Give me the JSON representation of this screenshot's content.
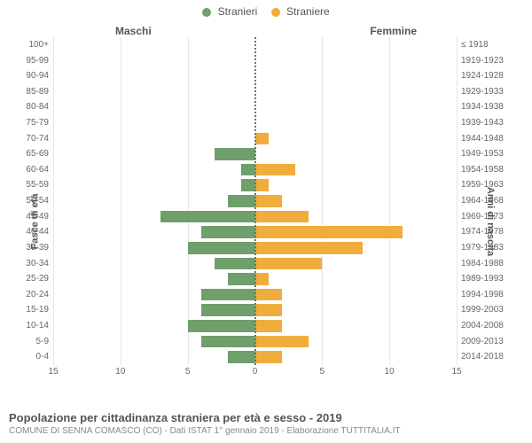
{
  "chart": {
    "type": "population-pyramid",
    "legend": {
      "male": {
        "label": "Stranieri",
        "color": "#6f9f6b"
      },
      "female": {
        "label": "Straniere",
        "color": "#f0ad3c"
      }
    },
    "side_titles": {
      "left": "Maschi",
      "right": "Femmine"
    },
    "y_axis_labels": {
      "left": "Fasce di età",
      "right": "Anni di nascita"
    },
    "x_axis": {
      "min": -15,
      "max": 15,
      "ticks": [
        -15,
        -10,
        -5,
        0,
        5,
        10,
        15
      ],
      "tick_labels": [
        "15",
        "10",
        "5",
        "0",
        "5",
        "10",
        "15"
      ]
    },
    "colors": {
      "background": "#ffffff",
      "text": "#555555",
      "text_muted": "#888888",
      "gridline": "#e6e6e6",
      "center_line": "#707070"
    },
    "typography": {
      "label_fontsize": 10,
      "legend_fontsize": 12,
      "side_title_fontsize": 12,
      "footer_title_fontsize": 13,
      "footer_sub_fontsize": 10
    },
    "rows": [
      {
        "age": "100+",
        "birth": "≤ 1918",
        "male": 0,
        "female": 0
      },
      {
        "age": "95-99",
        "birth": "1919-1923",
        "male": 0,
        "female": 0
      },
      {
        "age": "90-94",
        "birth": "1924-1928",
        "male": 0,
        "female": 0
      },
      {
        "age": "85-89",
        "birth": "1929-1933",
        "male": 0,
        "female": 0
      },
      {
        "age": "80-84",
        "birth": "1934-1938",
        "male": 0,
        "female": 0
      },
      {
        "age": "75-79",
        "birth": "1939-1943",
        "male": 0,
        "female": 0
      },
      {
        "age": "70-74",
        "birth": "1944-1948",
        "male": 0,
        "female": 1
      },
      {
        "age": "65-69",
        "birth": "1949-1953",
        "male": 3,
        "female": 0
      },
      {
        "age": "60-64",
        "birth": "1954-1958",
        "male": 1,
        "female": 3
      },
      {
        "age": "55-59",
        "birth": "1959-1963",
        "male": 1,
        "female": 1
      },
      {
        "age": "50-54",
        "birth": "1964-1968",
        "male": 2,
        "female": 2
      },
      {
        "age": "45-49",
        "birth": "1969-1973",
        "male": 7,
        "female": 4
      },
      {
        "age": "40-44",
        "birth": "1974-1978",
        "male": 4,
        "female": 11
      },
      {
        "age": "35-39",
        "birth": "1979-1983",
        "male": 5,
        "female": 8
      },
      {
        "age": "30-34",
        "birth": "1984-1988",
        "male": 3,
        "female": 5
      },
      {
        "age": "25-29",
        "birth": "1989-1993",
        "male": 2,
        "female": 1
      },
      {
        "age": "20-24",
        "birth": "1994-1998",
        "male": 4,
        "female": 2
      },
      {
        "age": "15-19",
        "birth": "1999-2003",
        "male": 4,
        "female": 2
      },
      {
        "age": "10-14",
        "birth": "2004-2008",
        "male": 5,
        "female": 2
      },
      {
        "age": "5-9",
        "birth": "2009-2013",
        "male": 4,
        "female": 4
      },
      {
        "age": "0-4",
        "birth": "2014-2018",
        "male": 2,
        "female": 2
      }
    ],
    "footer": {
      "title": "Popolazione per cittadinanza straniera per età e sesso - 2019",
      "subtitle": "COMUNE DI SENNA COMASCO (CO) - Dati ISTAT 1° gennaio 2019 - Elaborazione TUTTITALIA.IT"
    }
  }
}
